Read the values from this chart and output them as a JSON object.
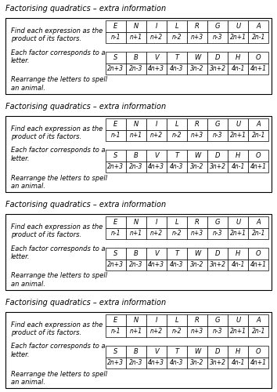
{
  "title": "Factorising quadratics – extra information",
  "instruction_lines": [
    "Find each expression as the\nproduct of its factors.",
    "Each factor corresponds to a\nletter.",
    "Rearrange the letters to spell\nan animal."
  ],
  "row1_headers": [
    "E",
    "N",
    "I",
    "L",
    "R",
    "G",
    "U",
    "A"
  ],
  "row1_values": [
    "n-1",
    "n+1",
    "n+2",
    "n-2",
    "n+3",
    "n-3",
    "2n+1",
    "2n-1"
  ],
  "row2_headers": [
    "S",
    "B",
    "V",
    "T",
    "W",
    "D",
    "H",
    "O"
  ],
  "row2_values": [
    "2n+3",
    "2n-3",
    "4n+3",
    "4n-3",
    "3n-2",
    "3n+2",
    "4n-1",
    "4n+1"
  ],
  "num_panels": 4,
  "bg_color": "#ffffff",
  "panel_bg": "#ffffff",
  "panel_border": "#000000",
  "text_color": "#000000",
  "title_fontsize": 7,
  "instruction_fontsize": 6,
  "table_header_fontsize": 6,
  "table_value_fontsize": 5.5
}
